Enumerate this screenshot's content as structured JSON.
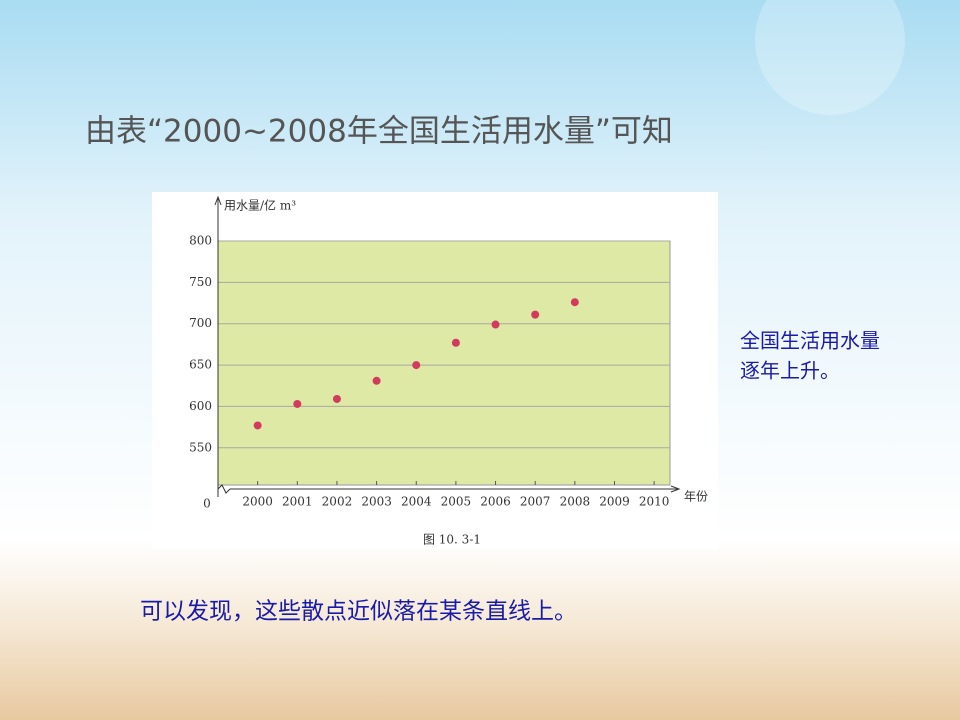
{
  "title": "由表“2000~2008年全国生活用水量”可知",
  "chart_data": {
    "type": "scatter",
    "y_axis_label": "用水量/亿 m³",
    "x_axis_label": "年份",
    "caption": "图 10. 3-1",
    "origin": 0,
    "axis_break": true,
    "x": [
      2000,
      2001,
      2002,
      2003,
      2004,
      2005,
      2006,
      2007,
      2008
    ],
    "values": [
      577,
      603,
      609,
      631,
      650,
      677,
      699,
      711,
      726
    ],
    "color": "#d23a5e",
    "plot_color": "#dfe9a6",
    "xlim": [
      1999,
      2010.4
    ],
    "xticks": [
      2000,
      2001,
      2002,
      2003,
      2004,
      2005,
      2006,
      2007,
      2008,
      2009,
      2010
    ],
    "ylim": [
      505,
      800
    ],
    "yticks": [
      550,
      600,
      650,
      700,
      750,
      800
    ],
    "grid": true
  },
  "note": [
    "全国生活用水量",
    "逐年上升。"
  ],
  "conclusion": "可以发现，这些散点近似落在某条直线上。"
}
